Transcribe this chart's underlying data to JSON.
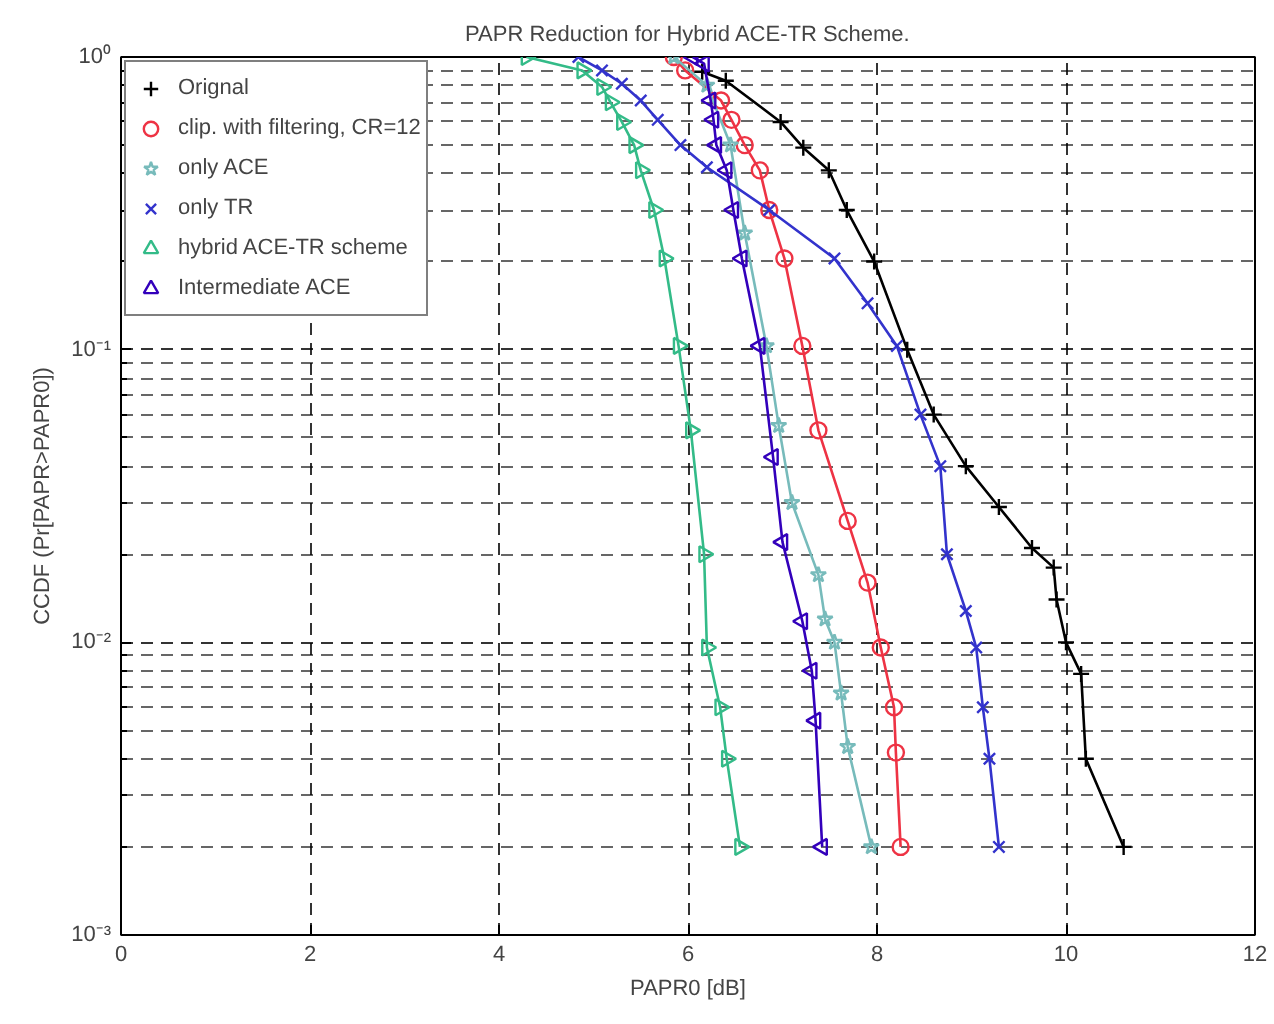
{
  "chart_data": {
    "type": "line",
    "title": "PAPR Reduction for Hybrid ACE-TR Scheme.",
    "xlabel": "PAPR0 [dB]",
    "ylabel": "CCDF (Pr[PAPR>PAPR0])",
    "log": "y",
    "grid": true,
    "legend": "top left",
    "line_style": "solid",
    "xlim": [
      0,
      12
    ],
    "xticks": [
      0,
      2,
      4,
      6,
      8,
      10,
      12
    ],
    "ylim": [
      0.001,
      1
    ],
    "yticks": [
      {
        "value": 0.001,
        "label": "10⁻³"
      },
      {
        "value": 0.01,
        "label": "10⁻²"
      },
      {
        "value": 0.1,
        "label": "10⁻¹"
      },
      {
        "value": 1,
        "label": "10⁰"
      }
    ],
    "series": [
      {
        "name": "Orignal",
        "color": "#000000",
        "marker": "cross",
        "x": [
          6.15,
          6.4,
          6.98,
          7.22,
          7.49,
          7.68,
          7.97,
          8.32,
          8.6,
          8.94,
          9.29,
          9.64,
          9.87,
          9.9,
          10.0,
          10.16,
          10.21,
          10.61
        ],
        "values": [
          0.89,
          0.83,
          0.6,
          0.49,
          0.41,
          0.3,
          0.2,
          0.1,
          0.06,
          0.04,
          0.029,
          0.021,
          0.018,
          0.014,
          0.01,
          0.0078,
          0.004,
          0.002
        ]
      },
      {
        "name": "clip. with filtering, CR=12",
        "color": "#ee3344",
        "marker": "circle",
        "x": [
          5.85,
          5.97,
          6.35,
          6.46,
          6.6,
          6.76,
          6.86,
          7.02,
          7.21,
          7.38,
          7.69,
          7.9,
          8.04,
          8.18,
          8.2,
          8.25
        ],
        "values": [
          1.0,
          0.9,
          0.71,
          0.61,
          0.5,
          0.41,
          0.3,
          0.205,
          0.103,
          0.053,
          0.026,
          0.016,
          0.0096,
          0.006,
          0.0042,
          0.002
        ]
      },
      {
        "name": "only ACE",
        "color": "#77bbbb",
        "marker": "star",
        "x": [
          5.85,
          6.2,
          6.45,
          6.6,
          6.83,
          6.96,
          7.1,
          7.38,
          7.45,
          7.55,
          7.62,
          7.69,
          7.94
        ],
        "values": [
          1.0,
          0.8,
          0.5,
          0.25,
          0.103,
          0.055,
          0.03,
          0.017,
          0.012,
          0.01,
          0.0067,
          0.0044,
          0.002
        ]
      },
      {
        "name": "only TR",
        "color": "#3333cc",
        "marker": "x",
        "x": [
          4.84,
          5.09,
          5.3,
          5.5,
          5.68,
          5.92,
          6.2,
          6.86,
          7.55,
          7.9,
          8.21,
          8.46,
          8.67,
          8.74,
          8.94,
          9.05,
          9.12,
          9.19,
          9.29
        ],
        "values": [
          1.0,
          0.9,
          0.81,
          0.71,
          0.61,
          0.5,
          0.42,
          0.3,
          0.205,
          0.144,
          0.103,
          0.06,
          0.04,
          0.02,
          0.0128,
          0.0096,
          0.006,
          0.004,
          0.002
        ]
      },
      {
        "name": "hybrid ACE-TR scheme",
        "color": "#33bb88",
        "marker": "triangle-right",
        "x": [
          4.29,
          4.88,
          5.09,
          5.18,
          5.3,
          5.43,
          5.5,
          5.64,
          5.75,
          5.9,
          6.03,
          6.17,
          6.2,
          6.34,
          6.41,
          6.55
        ],
        "values": [
          1.0,
          0.9,
          0.79,
          0.7,
          0.6,
          0.5,
          0.41,
          0.3,
          0.205,
          0.103,
          0.053,
          0.02,
          0.0096,
          0.006,
          0.004,
          0.002
        ]
      },
      {
        "name": "Intermediate ACE",
        "color": "#3300bb",
        "marker": "triangle-left",
        "x": [
          6.05,
          6.17,
          6.24,
          6.27,
          6.3,
          6.41,
          6.48,
          6.57,
          6.76,
          6.9,
          7.0,
          7.21,
          7.31,
          7.35,
          7.42
        ],
        "values": [
          1.0,
          0.95,
          0.71,
          0.61,
          0.5,
          0.41,
          0.3,
          0.205,
          0.103,
          0.043,
          0.022,
          0.0118,
          0.008,
          0.0054,
          0.002
        ]
      }
    ]
  }
}
